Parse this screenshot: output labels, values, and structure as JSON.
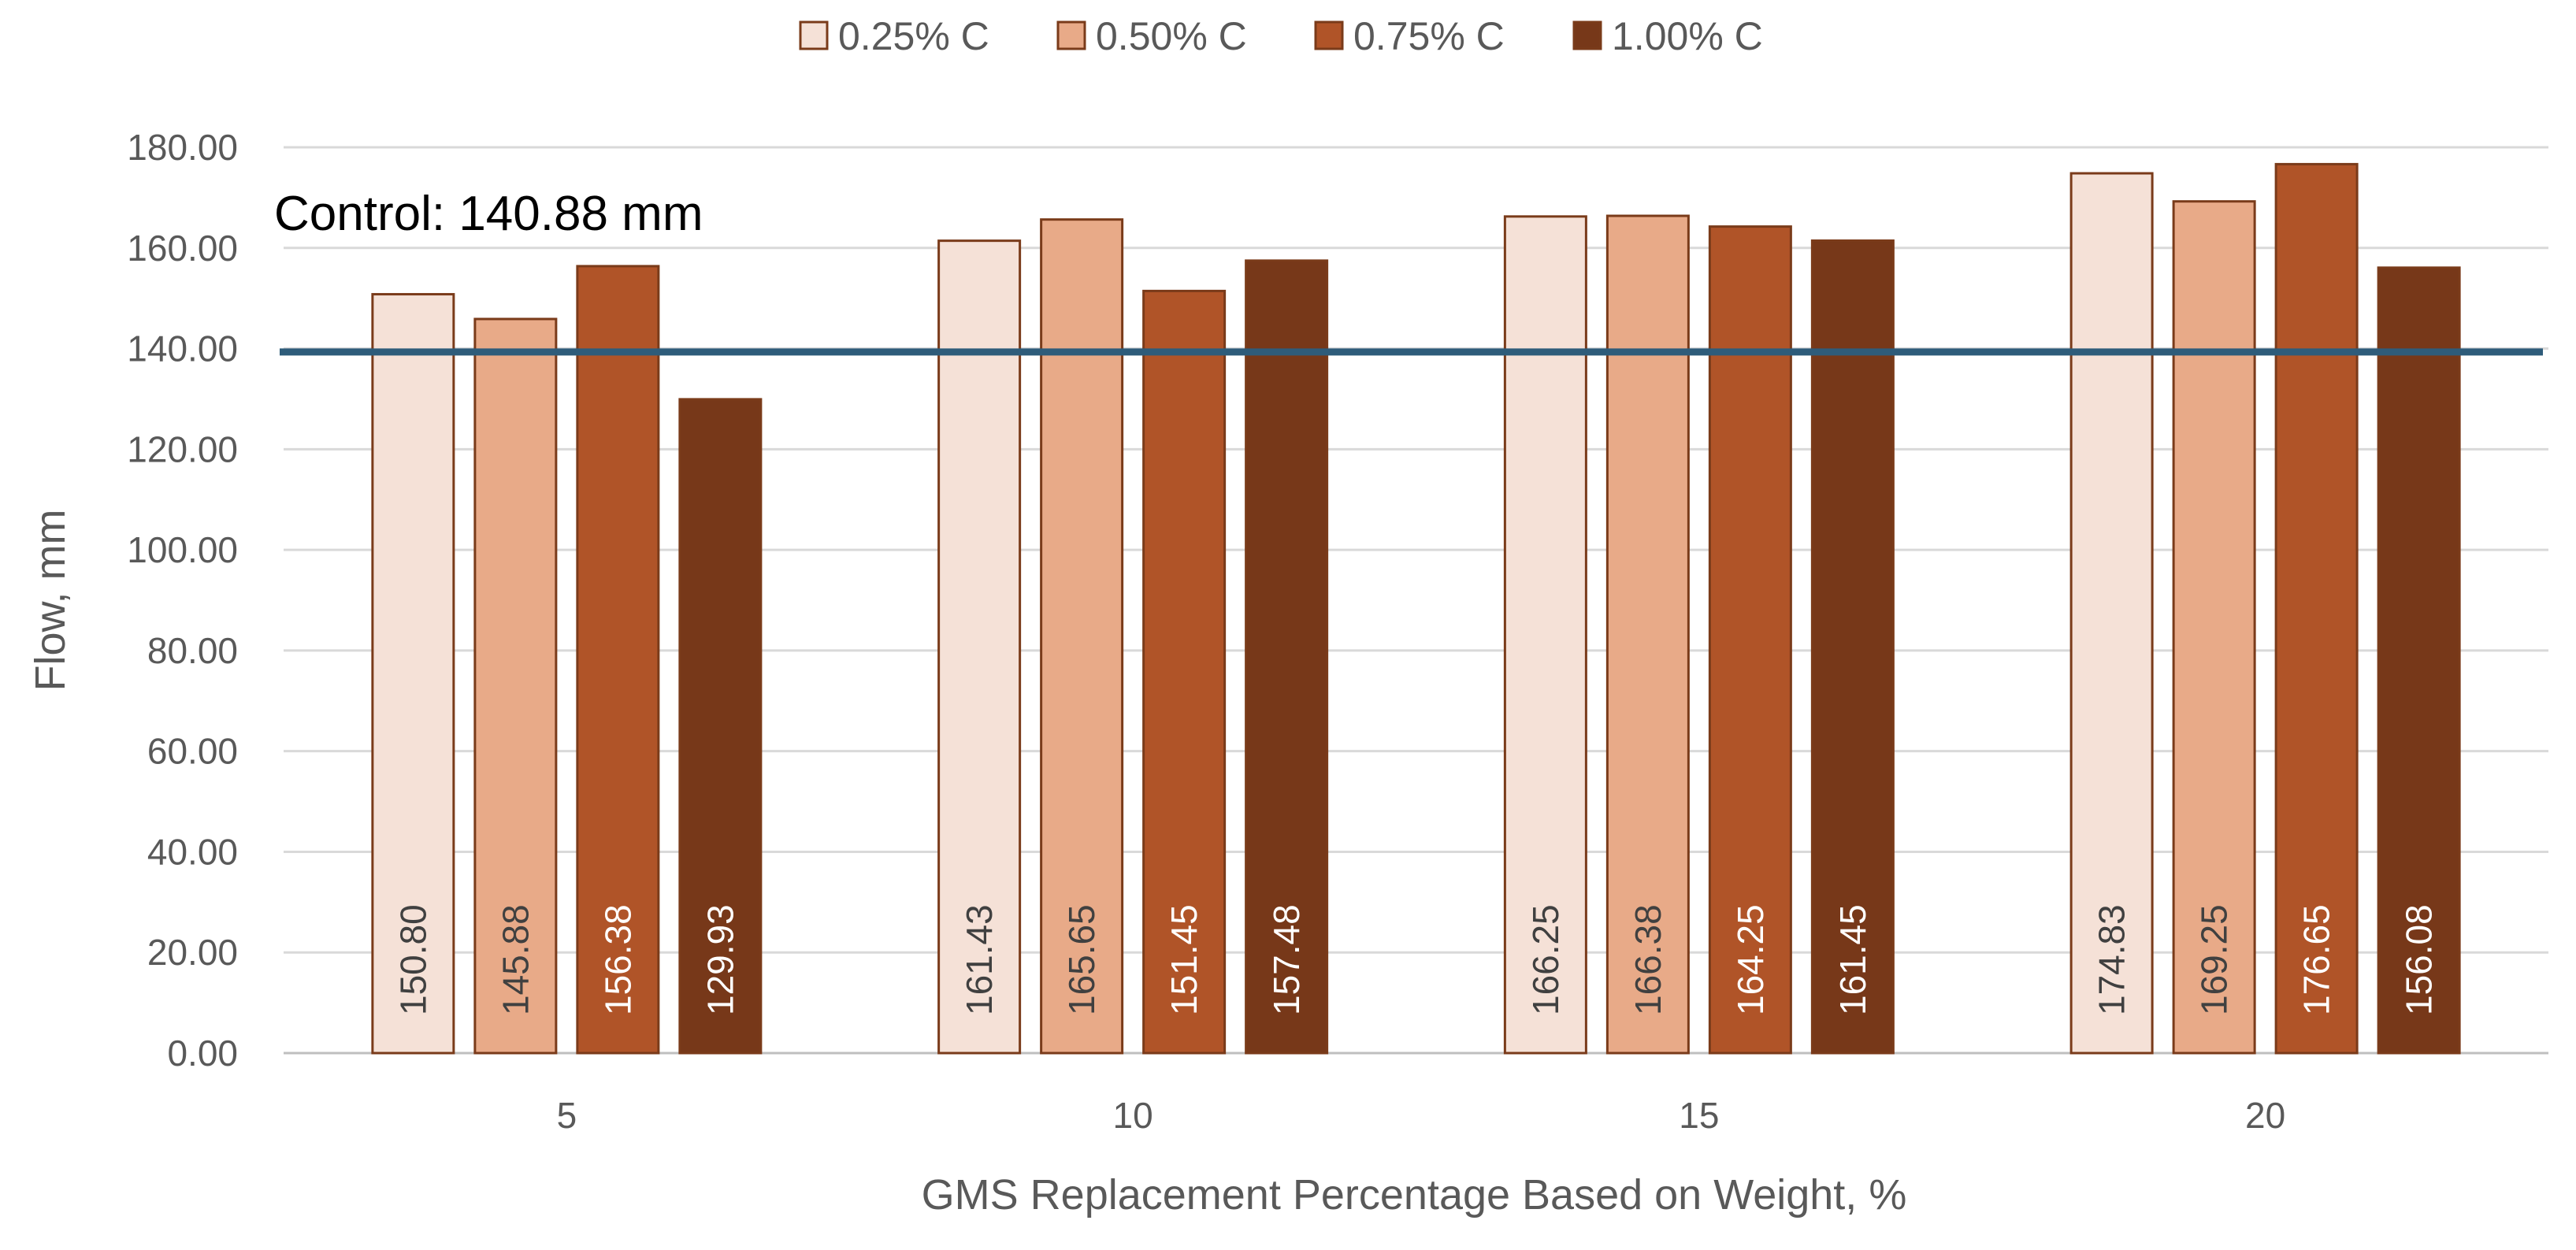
{
  "chart_data": {
    "type": "bar",
    "title": "",
    "xlabel": "GMS Replacement Percentage Based on Weight, %",
    "ylabel": "Flow, mm",
    "categories": [
      "5",
      "10",
      "15",
      "20"
    ],
    "ylim": [
      0,
      180
    ],
    "ytick_step": 20,
    "ytick_labels": [
      "0.00",
      "20.00",
      "40.00",
      "60.00",
      "80.00",
      "100.00",
      "120.00",
      "140.00",
      "160.00",
      "180.00"
    ],
    "grid": true,
    "legend_position": "top-center",
    "series": [
      {
        "name": "0.25% C",
        "color": "#F5E1D7",
        "label_color": "#404040",
        "values": [
          150.8,
          161.43,
          166.25,
          174.83
        ]
      },
      {
        "name": "0.50% C",
        "color": "#E8AA88",
        "label_color": "#404040",
        "values": [
          145.88,
          165.65,
          166.38,
          169.25
        ]
      },
      {
        "name": "0.75% C",
        "color": "#B05428",
        "label_color": "#FFFFFF",
        "values": [
          156.38,
          151.45,
          164.25,
          176.65
        ]
      },
      {
        "name": "1.00% C",
        "color": "#773819",
        "label_color": "#FFFFFF",
        "values": [
          129.93,
          157.48,
          161.45,
          156.08
        ]
      }
    ],
    "data_labels": [
      [
        "150.80",
        "161.43",
        "166.25",
        "174.83"
      ],
      [
        "145.88",
        "165.65",
        "166.38",
        "169.25"
      ],
      [
        "156.38",
        "151.45",
        "164.25",
        "176.65"
      ],
      [
        "129.93",
        "157.48",
        "161.45",
        "156.08"
      ]
    ],
    "reference_line": {
      "value": 140.88,
      "label": "Control: 140.88 mm",
      "color": "#2E5C7A"
    }
  }
}
